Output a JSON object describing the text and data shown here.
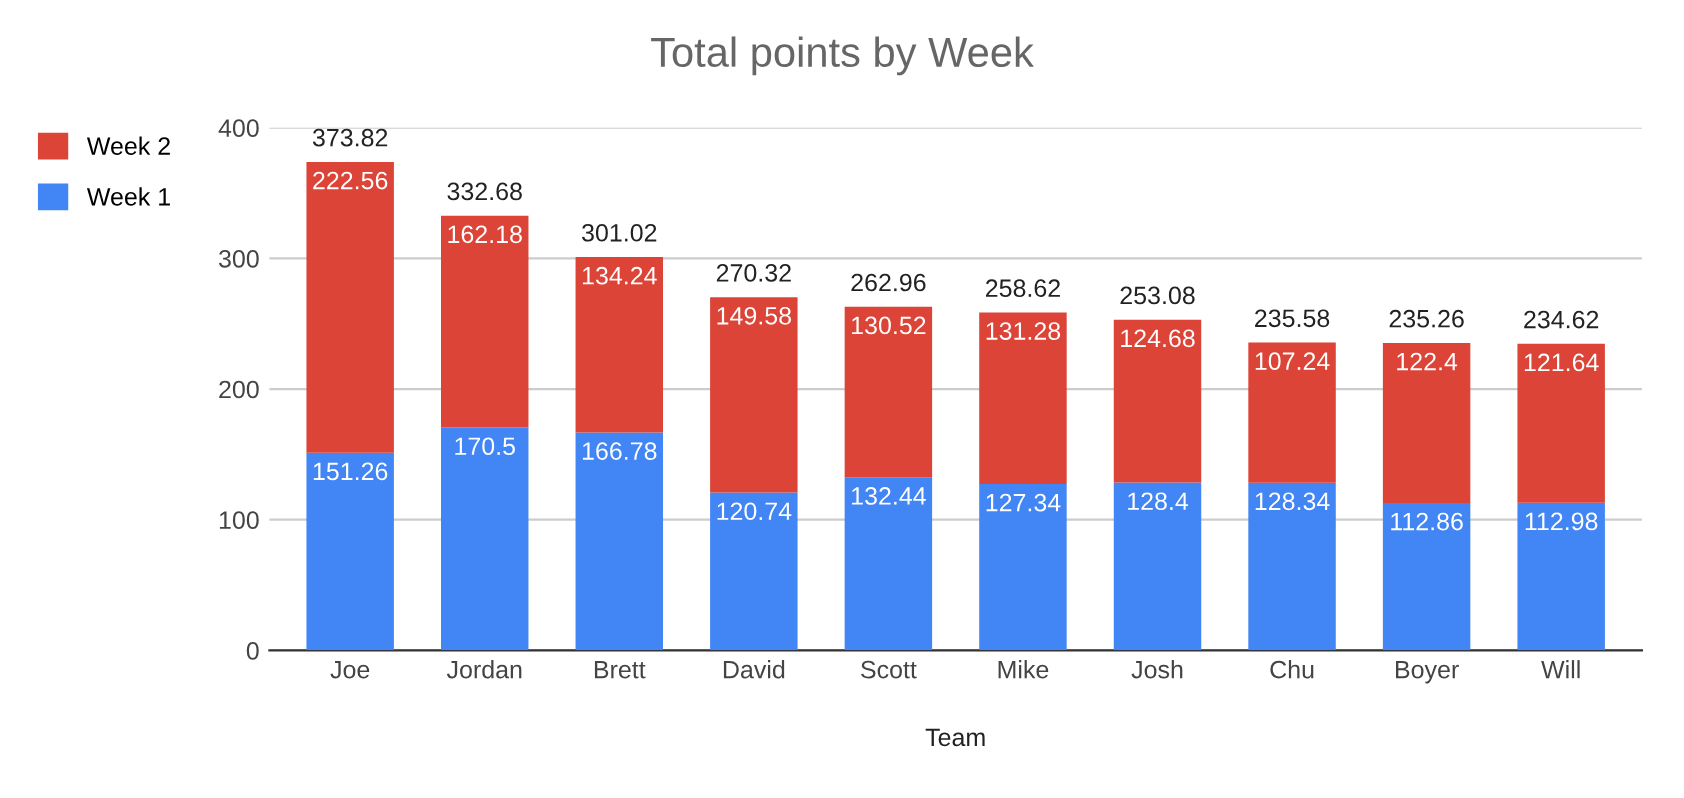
{
  "chart_data": {
    "type": "bar",
    "title": "Total points by Week",
    "xlabel": "Team",
    "stacked": true,
    "categories": [
      "Joe",
      "Jordan",
      "Brett",
      "David",
      "Scott",
      "Mike",
      "Josh",
      "Chu",
      "Boyer",
      "Will"
    ],
    "series": [
      {
        "name": "Week 1",
        "color": "#4285f4",
        "values": [
          151.26,
          170.5,
          166.78,
          120.74,
          132.44,
          127.34,
          128.4,
          128.34,
          112.86,
          112.98
        ]
      },
      {
        "name": "Week 2",
        "color": "#db4437",
        "values": [
          222.56,
          162.18,
          134.24,
          149.58,
          130.52,
          131.28,
          124.68,
          107.24,
          122.4,
          121.64
        ]
      }
    ],
    "totals": [
      "373.82",
      "332.68",
      "301.02",
      "270.32",
      "262.96",
      "258.62",
      "253.08",
      "235.58",
      "235.26",
      "234.62"
    ],
    "data_labels": true,
    "ylim": [
      0,
      400
    ],
    "yticks": [
      0,
      100,
      200,
      300,
      400
    ],
    "grid": "y",
    "legend": "left"
  }
}
